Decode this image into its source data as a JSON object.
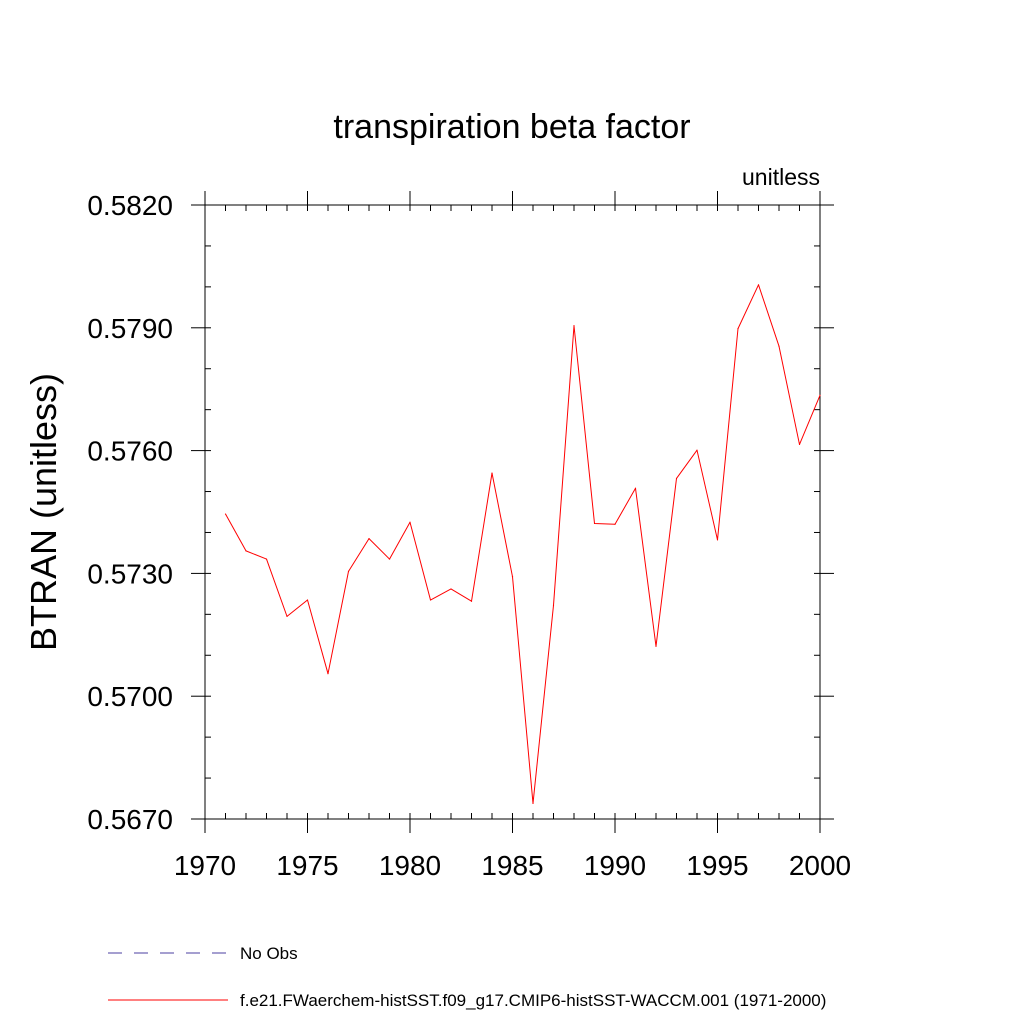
{
  "chart_data": {
    "type": "line",
    "title": "transpiration beta factor",
    "units_label": "unitless",
    "ylabel": "BTRAN  (unitless)",
    "xlabel": "",
    "xlim": [
      1970,
      2000
    ],
    "ylim": [
      0.567,
      0.582
    ],
    "x_ticks": [
      1970,
      1975,
      1980,
      1985,
      1990,
      1995,
      2000
    ],
    "x_tick_labels": [
      "1970",
      "1975",
      "1980",
      "1985",
      "1990",
      "1995",
      "2000"
    ],
    "y_ticks": [
      0.567,
      0.57,
      0.573,
      0.576,
      0.579,
      0.582
    ],
    "y_tick_labels": [
      "0.5670",
      "0.5700",
      "0.5730",
      "0.5760",
      "0.5790",
      "0.5820"
    ],
    "y_minor_step": 0.001,
    "x_minor_step": 1,
    "grid": false,
    "legend_position": "bottom",
    "series": [
      {
        "name": "No Obs",
        "color": "#4b3fa0",
        "dash": "dashed",
        "x": [],
        "values": []
      },
      {
        "name": "f.e21.FWaerchem-histSST.f09_g17.CMIP6-histSST-WACCM.001 (1971-2000)",
        "color": "#ff0000",
        "dash": "solid",
        "x": [
          1971,
          1972,
          1973,
          1974,
          1975,
          1976,
          1977,
          1978,
          1979,
          1980,
          1981,
          1982,
          1983,
          1984,
          1985,
          1986,
          1987,
          1988,
          1989,
          1990,
          1991,
          1992,
          1993,
          1994,
          1995,
          1996,
          1997,
          1998,
          1999,
          2000
        ],
        "values": [
          0.57445,
          0.57355,
          0.57335,
          0.57195,
          0.57235,
          0.57055,
          0.57305,
          0.57385,
          0.57335,
          0.57425,
          0.57235,
          0.57262,
          0.57232,
          0.57545,
          0.57292,
          0.56738,
          0.57222,
          0.57905,
          0.57422,
          0.5742,
          0.57508,
          0.57122,
          0.57532,
          0.57601,
          0.57382,
          0.57898,
          0.58005,
          0.57855,
          0.57615,
          0.57735
        ]
      }
    ]
  }
}
